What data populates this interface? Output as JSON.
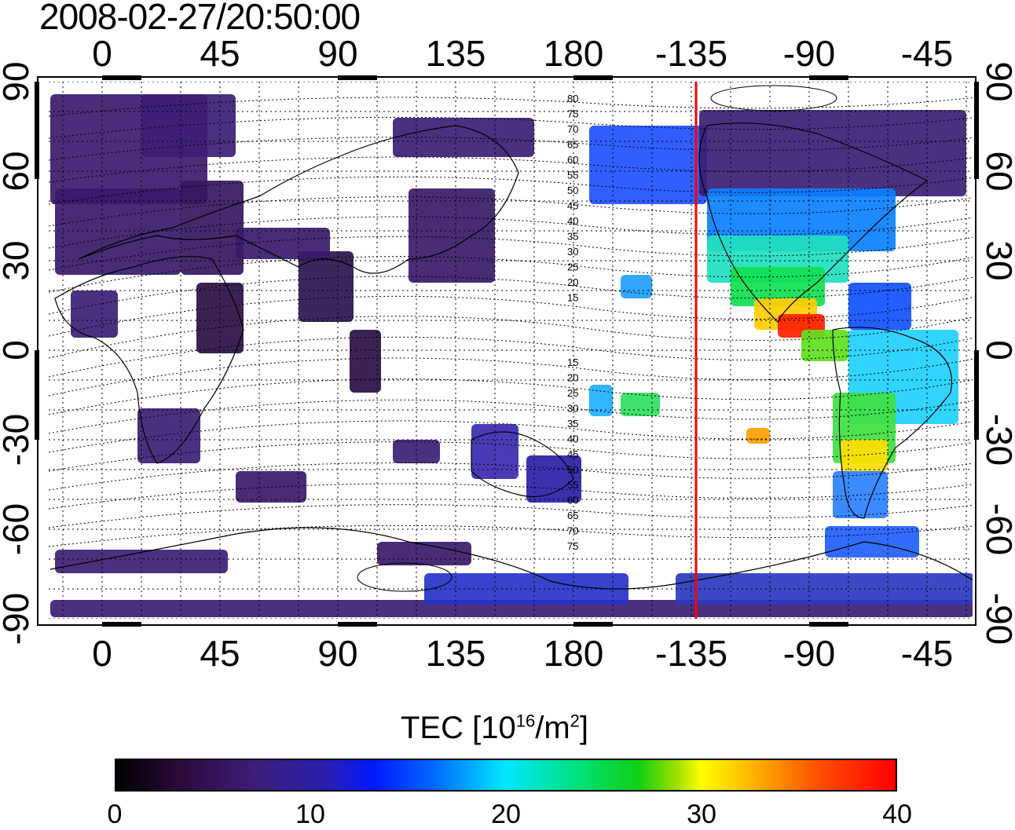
{
  "title": "2008-02-27/20:50:00",
  "map": {
    "lon_tick_labels": [
      "0",
      "45",
      "90",
      "135",
      "180",
      "-135",
      "-90",
      "-45"
    ],
    "lat_tick_labels": [
      "90",
      "60",
      "30",
      "0",
      "-30",
      "-60",
      "-90"
    ],
    "contour_labels_north": [
      "80",
      "75",
      "70",
      "65",
      "60",
      "55",
      "50",
      "45",
      "40",
      "35",
      "30",
      "25",
      "20",
      "15"
    ],
    "contour_labels_south": [
      "15",
      "20",
      "25",
      "30",
      "35",
      "40",
      "45",
      "50",
      "55",
      "60",
      "65",
      "70",
      "75"
    ],
    "terminator_longitude": -135,
    "terminator_color": "#ff0000"
  },
  "colorbar": {
    "title_main": "TEC  [10",
    "title_sup1": "16",
    "title_mid": "/m",
    "title_sup2": "2",
    "title_end": "]",
    "ticks": [
      "0",
      "10",
      "20",
      "30",
      "40"
    ],
    "range": [
      0,
      40
    ]
  }
}
